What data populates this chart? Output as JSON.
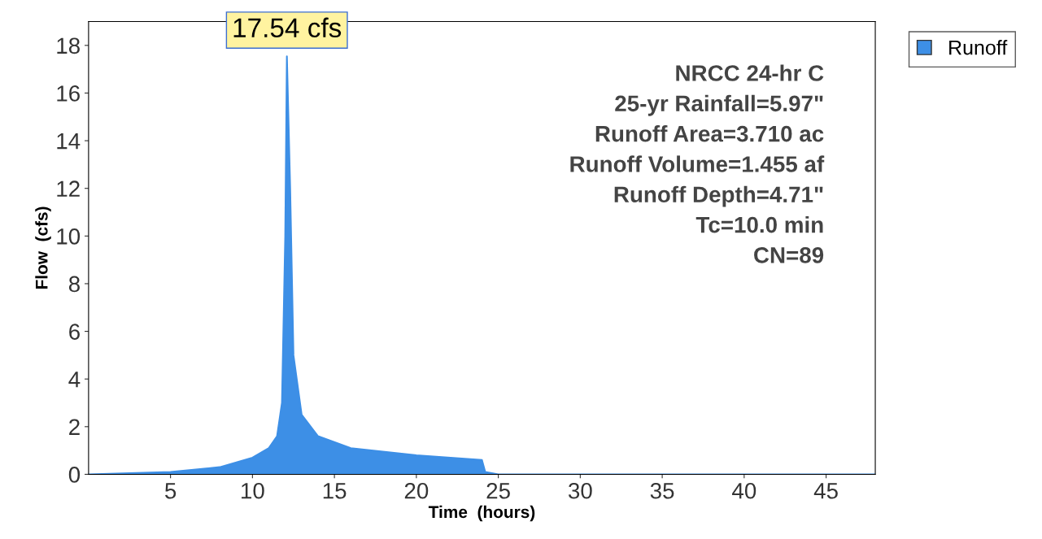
{
  "chart_data": {
    "type": "area",
    "xlabel": "Time  (hours)",
    "ylabel": "Flow  (cfs)",
    "x": [
      0,
      5,
      8,
      10,
      11,
      11.5,
      11.8,
      12.0,
      12.1,
      12.3,
      12.5,
      13,
      14,
      16,
      20,
      24,
      24.2,
      25,
      30,
      40,
      48
    ],
    "series": [
      {
        "name": "Runoff",
        "color": "#3d8fe6",
        "values": [
          0,
          0.1,
          0.3,
          0.7,
          1.1,
          1.6,
          3,
          10,
          17.54,
          12,
          5,
          2.5,
          1.6,
          1.1,
          0.8,
          0.6,
          0.1,
          0,
          0,
          0,
          0
        ]
      }
    ],
    "xlim": [
      0,
      48
    ],
    "xticks": [
      5,
      10,
      15,
      20,
      25,
      30,
      35,
      40,
      45
    ],
    "ylim": [
      0,
      19
    ],
    "yticks": [
      0,
      2,
      4,
      6,
      8,
      10,
      12,
      14,
      16,
      18
    ],
    "grid": false,
    "legend": "top right",
    "annotations": [
      {
        "text": "17.54 cfs",
        "x": 12.1,
        "y": 17.54
      },
      "NRCC 24-hr C",
      "25-yr Rainfall=5.97\"",
      "Runoff Area=3.710 ac",
      "Runoff Volume=1.455 af",
      "Runoff Depth=4.71\"",
      "Tc=10.0 min",
      "CN=89"
    ]
  }
}
